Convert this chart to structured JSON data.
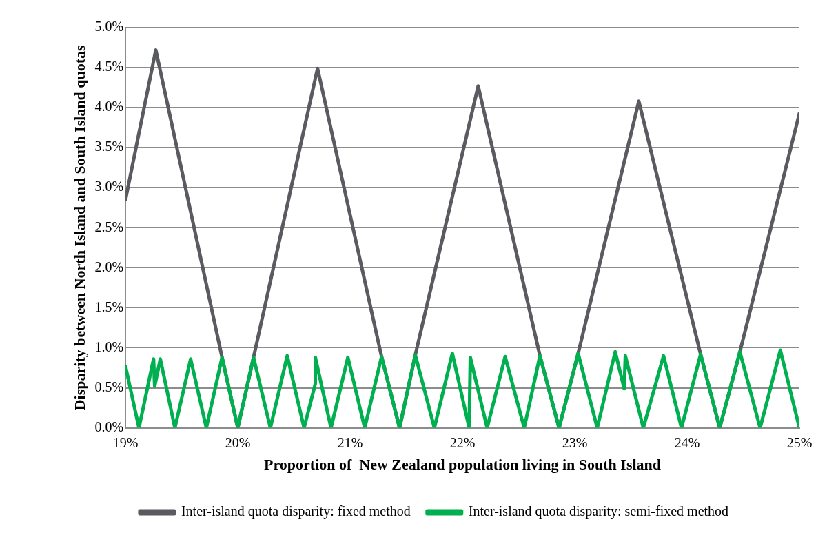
{
  "chart_data": {
    "type": "line",
    "xlabel": "Proportion of  New Zealand population living in South Island",
    "ylabel": "Disparity between North Island and South Island quotas",
    "xlim": [
      19,
      25
    ],
    "xticks": [
      {
        "value": 19,
        "label": "19%"
      },
      {
        "value": 20,
        "label": "20%"
      },
      {
        "value": 21,
        "label": "21%"
      },
      {
        "value": 22,
        "label": "22%"
      },
      {
        "value": 23,
        "label": "23%"
      },
      {
        "value": 24,
        "label": "24%"
      },
      {
        "value": 25,
        "label": "25%"
      }
    ],
    "ylim": [
      0,
      5
    ],
    "yticks": [
      {
        "value": 0,
        "label": "0.0%"
      },
      {
        "value": 0.5,
        "label": "0.5%"
      },
      {
        "value": 1,
        "label": "1.0%"
      },
      {
        "value": 1.5,
        "label": "1.5%"
      },
      {
        "value": 2,
        "label": "2.0%"
      },
      {
        "value": 2.5,
        "label": "2.5%"
      },
      {
        "value": 3,
        "label": "3.0%"
      },
      {
        "value": 3.5,
        "label": "3.5%"
      },
      {
        "value": 4,
        "label": "4.0%"
      },
      {
        "value": 4.5,
        "label": "4.5%"
      },
      {
        "value": 5,
        "label": "5.0%"
      }
    ],
    "grid": "y",
    "legend": "bottom",
    "marker": "none",
    "line_style": "solid",
    "series": [
      {
        "name": "Inter-island quota disparity: fixed method",
        "color": "#595b61",
        "x": [
          19,
          19.27,
          19.86,
          20.0,
          20.14,
          20.71,
          21.28,
          21.44,
          21.58,
          22.14,
          22.69,
          22.86,
          23.03,
          23.57,
          24.12,
          24.29,
          24.47,
          25
        ],
        "values": [
          2.85,
          4.72,
          0.88,
          0,
          0.88,
          4.49,
          0.89,
          0,
          0.91,
          4.27,
          0.9,
          0,
          0.93,
          4.08,
          0.92,
          0,
          0.95,
          3.93
        ]
      },
      {
        "name": "Inter-island quota disparity: semi-fixed method",
        "color": "#00b050",
        "x": [
          19,
          19.12,
          19.25,
          19.26,
          19.31,
          19.44,
          19.58,
          19.72,
          19.86,
          20.0,
          20.14,
          20.29,
          20.44,
          20.59,
          20.69,
          20.69,
          20.83,
          20.98,
          21.13,
          21.28,
          21.44,
          21.58,
          21.75,
          21.91,
          22.06,
          22.07,
          22.22,
          22.38,
          22.55,
          22.69,
          22.86,
          23.03,
          23.2,
          23.36,
          23.44,
          23.45,
          23.61,
          23.79,
          23.95,
          24.12,
          24.29,
          24.47,
          24.65,
          24.83,
          25
        ],
        "values": [
          0.77,
          0,
          0.86,
          0.52,
          0.86,
          0,
          0.86,
          0,
          0.88,
          0,
          0.88,
          0,
          0.9,
          0,
          0.55,
          0.88,
          0,
          0.88,
          0,
          0.89,
          0,
          0.91,
          0,
          0.93,
          0,
          0.88,
          0,
          0.89,
          0,
          0.9,
          0,
          0.93,
          0,
          0.95,
          0.49,
          0.9,
          0,
          0.9,
          0,
          0.92,
          0,
          0.95,
          0,
          0.97,
          0
        ]
      }
    ]
  }
}
